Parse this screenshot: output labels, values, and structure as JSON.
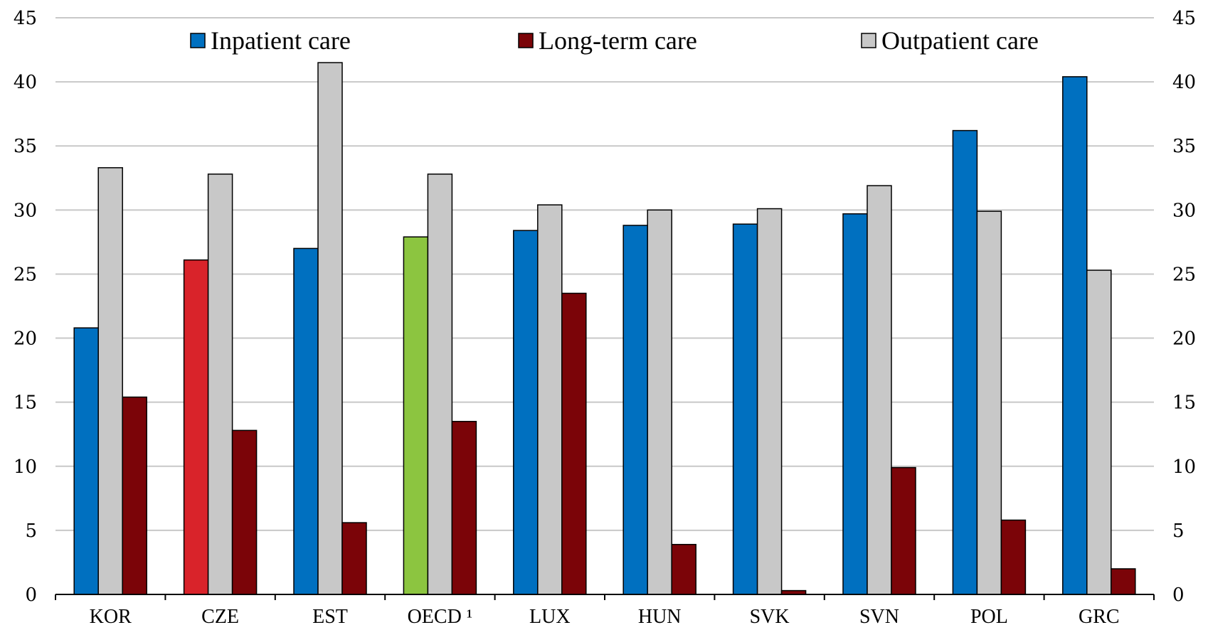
{
  "chart_data": {
    "type": "bar",
    "categories": [
      "KOR",
      "CZE",
      "EST",
      "OECD ¹",
      "LUX",
      "HUN",
      "SVK",
      "SVN",
      "POL",
      "GRC"
    ],
    "series": [
      {
        "name": "Inpatient care",
        "color": "#0070C0",
        "values": [
          20.8,
          26.1,
          27.0,
          27.9,
          28.4,
          28.8,
          28.9,
          29.7,
          36.2,
          40.4
        ],
        "highlight_colors": {
          "1": "#D9232A",
          "3": "#8CC540"
        }
      },
      {
        "name": "Outpatient care",
        "color": "#C8C8C8",
        "values": [
          33.3,
          32.8,
          41.5,
          32.8,
          30.4,
          30.0,
          30.1,
          31.9,
          29.9,
          25.3
        ]
      },
      {
        "name": "Long-term care",
        "color": "#7B0408",
        "values": [
          15.4,
          12.8,
          5.6,
          13.5,
          23.5,
          3.9,
          0.3,
          9.9,
          5.8,
          2.0
        ]
      }
    ],
    "legend_order": [
      "Inpatient care",
      "Long-term care",
      "Outpatient care"
    ],
    "ylim": [
      0,
      45
    ],
    "yticks": [
      0,
      5,
      10,
      15,
      20,
      25,
      30,
      35,
      40,
      45
    ],
    "ytick_labels": [
      "0",
      "5",
      "10",
      "15",
      "20",
      "25",
      "30",
      "35",
      "40",
      "45"
    ],
    "secondary_y_axis": true,
    "grid": true,
    "legend_position": "top"
  }
}
